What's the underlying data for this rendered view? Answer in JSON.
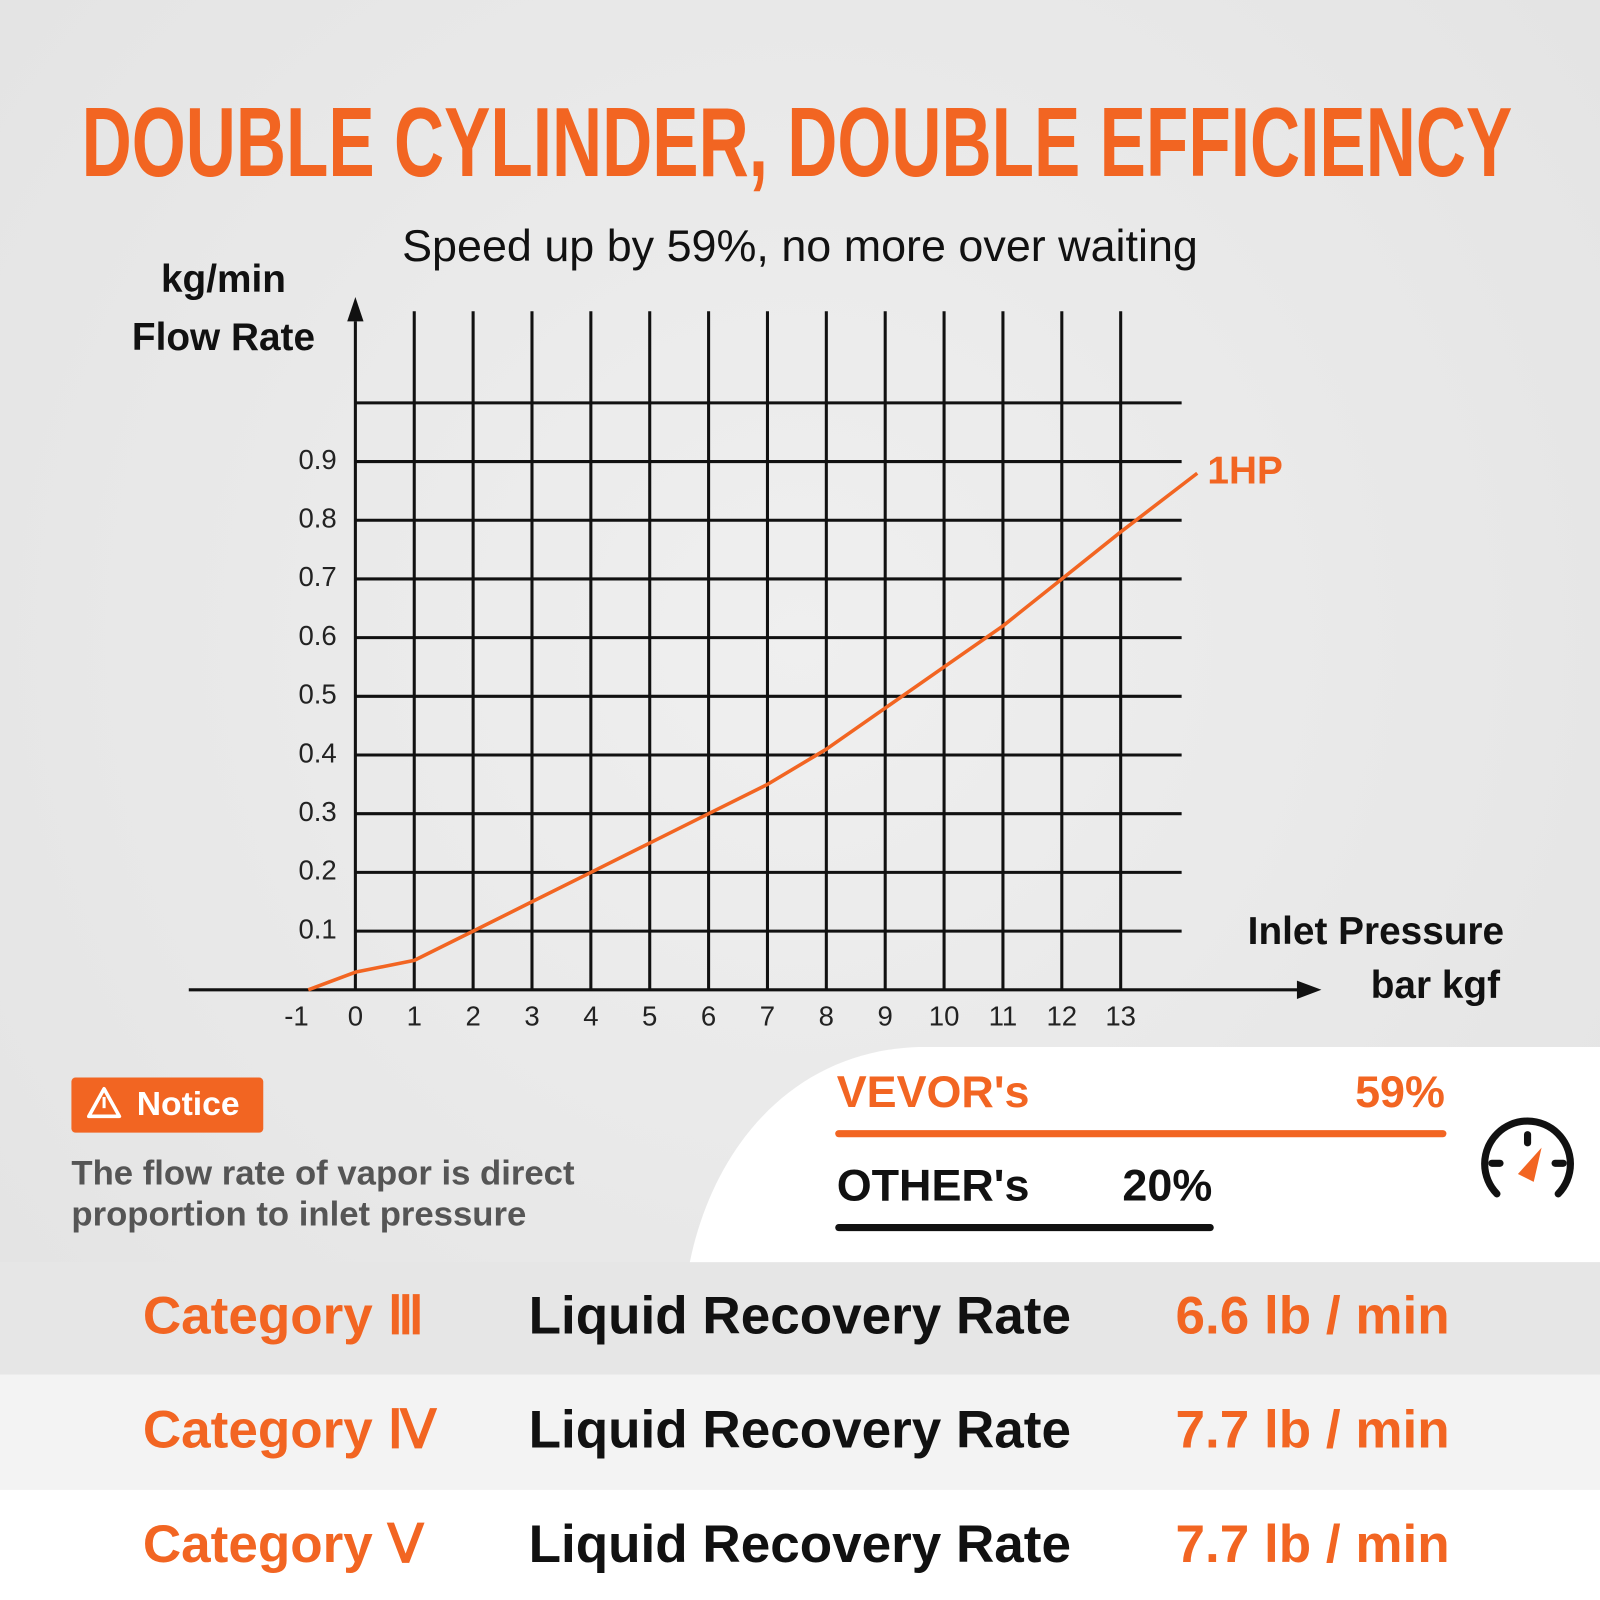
{
  "chart_data": {
    "type": "line",
    "title": "DOUBLE CYLINDER, DOUBLE EFFICIENCY",
    "subtitle": "Speed up by 59%, no more over waiting",
    "yunit": "kg/min",
    "ylabel": "Flow Rate",
    "xlabel": "Inlet Pressure",
    "xunit": "bar kgf",
    "xlim": [
      -2.83,
      16.41
    ],
    "ylim": [
      0,
      1.17
    ],
    "xticks": [
      -1,
      0,
      1,
      2,
      3,
      4,
      5,
      6,
      7,
      8,
      9,
      10,
      11,
      12,
      13
    ],
    "yticks": [
      0.1,
      0.2,
      0.3,
      0.4,
      0.5,
      0.6,
      0.7,
      0.8,
      0.9
    ],
    "xgrid": [
      1,
      2,
      3,
      4,
      5,
      6,
      7,
      8,
      9,
      10,
      11,
      12,
      13
    ],
    "ygrid": [
      0.1,
      0.2,
      0.3,
      0.4,
      0.5,
      0.6,
      0.7,
      0.8,
      0.9,
      1.0
    ],
    "grid": true,
    "series": [
      {
        "name": "1HP",
        "color": "#f26522",
        "x": [
          -0.8,
          0,
          1,
          2,
          3,
          4,
          5,
          6,
          7,
          8,
          9,
          10,
          11,
          12,
          13,
          14.3
        ],
        "values": [
          0,
          0.03,
          0.05,
          0.1,
          0.15,
          0.2,
          0.25,
          0.3,
          0.35,
          0.41,
          0.48,
          0.55,
          0.62,
          0.7,
          0.78,
          0.88
        ]
      }
    ]
  },
  "notice": {
    "label": "Notice",
    "lines": [
      "The flow rate of vapor is direct",
      "proportion to inlet pressure"
    ]
  },
  "comparison": [
    {
      "name": "VEVOR's",
      "value": "59%"
    },
    {
      "name": "OTHER's",
      "value": "20%"
    }
  ],
  "table": {
    "rows": [
      [
        "Category Ⅲ",
        "Liquid Recovery Rate",
        "6.6 lb / min"
      ],
      [
        "Category Ⅳ",
        "Liquid Recovery Rate",
        "7.7 lb / min"
      ],
      [
        "Category Ⅴ",
        "Liquid Recovery Rate",
        "7.7 lb / min"
      ]
    ]
  }
}
